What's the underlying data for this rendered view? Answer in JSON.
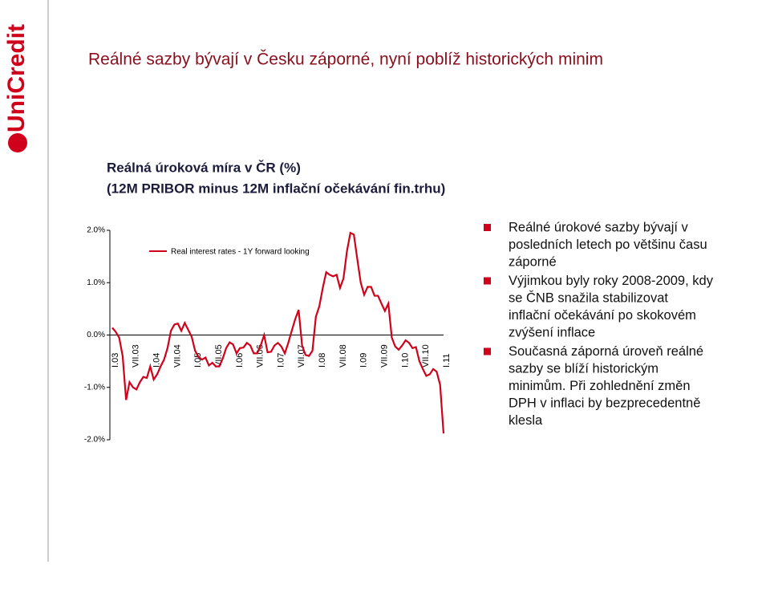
{
  "logo": "UniCredit",
  "slide_title": "Reálné sazby bývají v Česku záporné, nyní poblíž historických minim",
  "chart_data": {
    "type": "line",
    "title": [
      "Reálná úroková míra v ČR (%)",
      "(12M PRIBOR minus 12M inflační očekávání fin.trhu)"
    ],
    "categories": [
      "I.03",
      null,
      null,
      null,
      null,
      null,
      "VII.03",
      null,
      null,
      null,
      null,
      null,
      "I.04",
      null,
      null,
      null,
      null,
      null,
      "VII.04",
      null,
      null,
      null,
      null,
      null,
      "I.05",
      null,
      null,
      null,
      null,
      null,
      "VII.05",
      null,
      null,
      null,
      null,
      null,
      "I.06",
      null,
      null,
      null,
      null,
      null,
      "VII.06",
      null,
      null,
      null,
      null,
      null,
      "I.07",
      null,
      null,
      null,
      null,
      null,
      "VII.07",
      null,
      null,
      null,
      null,
      null,
      "I.08",
      null,
      null,
      null,
      null,
      null,
      "VII.08",
      null,
      null,
      null,
      null,
      null,
      "I.09",
      null,
      null,
      null,
      null,
      null,
      "VII.09",
      null,
      null,
      null,
      null,
      null,
      "I.10",
      null,
      null,
      null,
      null,
      null,
      "VII.10",
      null,
      null,
      null,
      null,
      null,
      "I.11"
    ],
    "series": [
      {
        "name": "Real interest rates - 1Y forward looking",
        "color": "#d0021b",
        "values": [
          0.14,
          0.06,
          -0.05,
          -0.4,
          -1.24,
          -0.9,
          -1.0,
          -1.04,
          -0.9,
          -0.8,
          -0.82,
          -0.6,
          -0.85,
          -0.75,
          -0.6,
          -0.47,
          -0.25,
          0.08,
          0.2,
          0.22,
          0.08,
          0.23,
          0.1,
          -0.03,
          -0.3,
          -0.42,
          -0.47,
          -0.43,
          -0.58,
          -0.53,
          -0.6,
          -0.6,
          -0.45,
          -0.25,
          -0.14,
          -0.18,
          -0.35,
          -0.25,
          -0.24,
          -0.15,
          -0.2,
          -0.35,
          -0.35,
          -0.2,
          0.0,
          -0.33,
          -0.32,
          -0.2,
          -0.15,
          -0.22,
          -0.35,
          -0.15,
          0.08,
          0.3,
          0.48,
          -0.2,
          -0.38,
          -0.4,
          -0.3,
          0.35,
          0.55,
          0.9,
          1.2,
          1.15,
          1.12,
          1.15,
          0.9,
          1.08,
          1.6,
          1.95,
          1.92,
          1.45,
          1.0,
          0.77,
          0.92,
          0.92,
          0.75,
          0.75,
          0.6,
          0.46,
          0.6,
          -0.05,
          -0.22,
          -0.28,
          -0.2,
          -0.1,
          -0.15,
          -0.25,
          -0.23,
          -0.5,
          -0.65,
          -0.78,
          -0.75,
          -0.65,
          -0.7,
          -0.95,
          -1.88
        ]
      }
    ],
    "ylim": [
      -2,
      2
    ],
    "yticks": [
      {
        "value": 2,
        "label": "2.0%"
      },
      {
        "value": 1,
        "label": "1.0%"
      },
      {
        "value": 0,
        "label": "0.0%"
      },
      {
        "value": -1,
        "label": "-1.0%"
      },
      {
        "value": -2,
        "label": "-2.0%"
      }
    ]
  },
  "bullets": [
    [
      "Reálné úrokové sazby bývají v",
      "posledních letech po většinu času",
      "záporné"
    ],
    [
      "Výjimkou byly roky 2008-2009, kdy",
      "se ČNB snažila stabilizovat",
      "inflační očekávání po skokovém",
      "zvýšení inflace"
    ],
    [
      "Současná záporná úroveň reálné",
      "sazby se blíží historickým",
      "minimům. Při zohlednění změn",
      "DPH v inflaci by bezprecedentně",
      "klesla"
    ]
  ]
}
